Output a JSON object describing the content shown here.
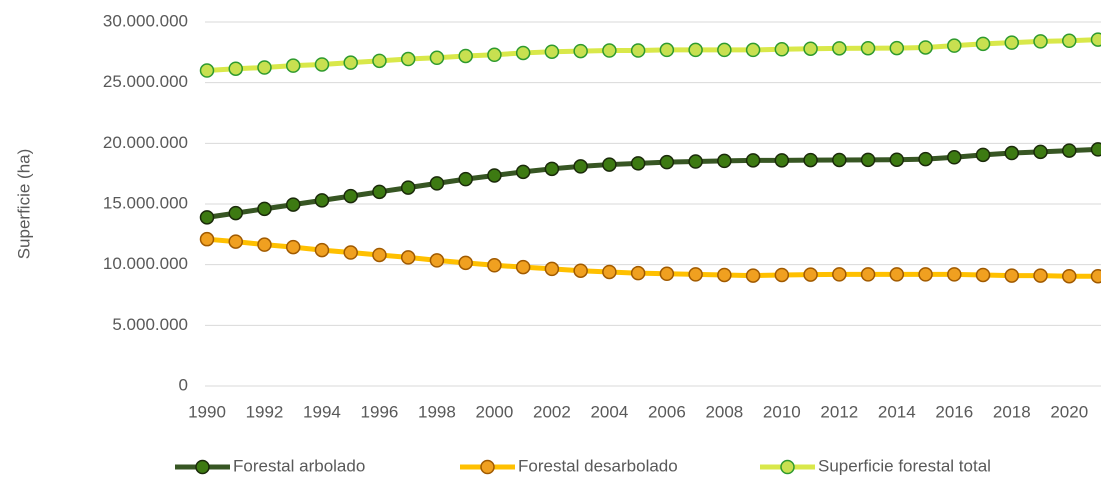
{
  "chart_data": {
    "type": "line",
    "ylabel": "Superficie (ha)",
    "x": [
      1990,
      1991,
      1992,
      1993,
      1994,
      1995,
      1996,
      1997,
      1998,
      1999,
      2000,
      2001,
      2002,
      2003,
      2004,
      2005,
      2006,
      2007,
      2008,
      2009,
      2010,
      2011,
      2012,
      2013,
      2014,
      2015,
      2016,
      2017,
      2018,
      2019,
      2020,
      2021
    ],
    "xlim": [
      1990,
      2021
    ],
    "xticks": [
      1990,
      1992,
      1994,
      1996,
      1998,
      2000,
      2002,
      2004,
      2006,
      2008,
      2010,
      2012,
      2014,
      2016,
      2018,
      2020
    ],
    "ylim": [
      0,
      30000000
    ],
    "yticks": [
      {
        "value": 0,
        "label": "0"
      },
      {
        "value": 5000000,
        "label": "5.000.000"
      },
      {
        "value": 10000000,
        "label": "10.000.000"
      },
      {
        "value": 15000000,
        "label": "15.000.000"
      },
      {
        "value": 20000000,
        "label": "20.000.000"
      },
      {
        "value": 25000000,
        "label": "25.000.000"
      },
      {
        "value": 30000000,
        "label": "30.000.000"
      }
    ],
    "grid": true,
    "legend": "bottom",
    "series": [
      {
        "name": "Forestal arbolado",
        "color": "#375623",
        "marker_fill": "#3d7a12",
        "marker_edge": "#1a2a0a",
        "values": [
          13900000,
          14250000,
          14600000,
          14950000,
          15300000,
          15650000,
          16000000,
          16350000,
          16700000,
          17050000,
          17350000,
          17650000,
          17900000,
          18100000,
          18250000,
          18350000,
          18450000,
          18500000,
          18550000,
          18600000,
          18600000,
          18620000,
          18630000,
          18640000,
          18650000,
          18700000,
          18850000,
          19050000,
          19200000,
          19300000,
          19400000,
          19500000
        ]
      },
      {
        "name": "Forestal desarbolado",
        "color": "#ffc000",
        "marker_fill": "#f0a020",
        "marker_edge": "#a05a00",
        "values": [
          12100000,
          11900000,
          11650000,
          11450000,
          11200000,
          11000000,
          10800000,
          10600000,
          10350000,
          10150000,
          9950000,
          9800000,
          9650000,
          9500000,
          9400000,
          9300000,
          9250000,
          9200000,
          9150000,
          9100000,
          9150000,
          9180000,
          9200000,
          9200000,
          9200000,
          9200000,
          9200000,
          9150000,
          9100000,
          9100000,
          9050000,
          9050000
        ]
      },
      {
        "name": "Superficie forestal total",
        "color": "#d9e84a",
        "marker_fill": "#c8e050",
        "marker_edge": "#2e9a2e",
        "values": [
          26000000,
          26150000,
          26250000,
          26400000,
          26500000,
          26650000,
          26800000,
          26950000,
          27050000,
          27200000,
          27300000,
          27450000,
          27550000,
          27600000,
          27650000,
          27650000,
          27700000,
          27700000,
          27700000,
          27700000,
          27750000,
          27800000,
          27830000,
          27840000,
          27850000,
          27900000,
          28050000,
          28200000,
          28300000,
          28400000,
          28450000,
          28550000
        ]
      }
    ]
  }
}
